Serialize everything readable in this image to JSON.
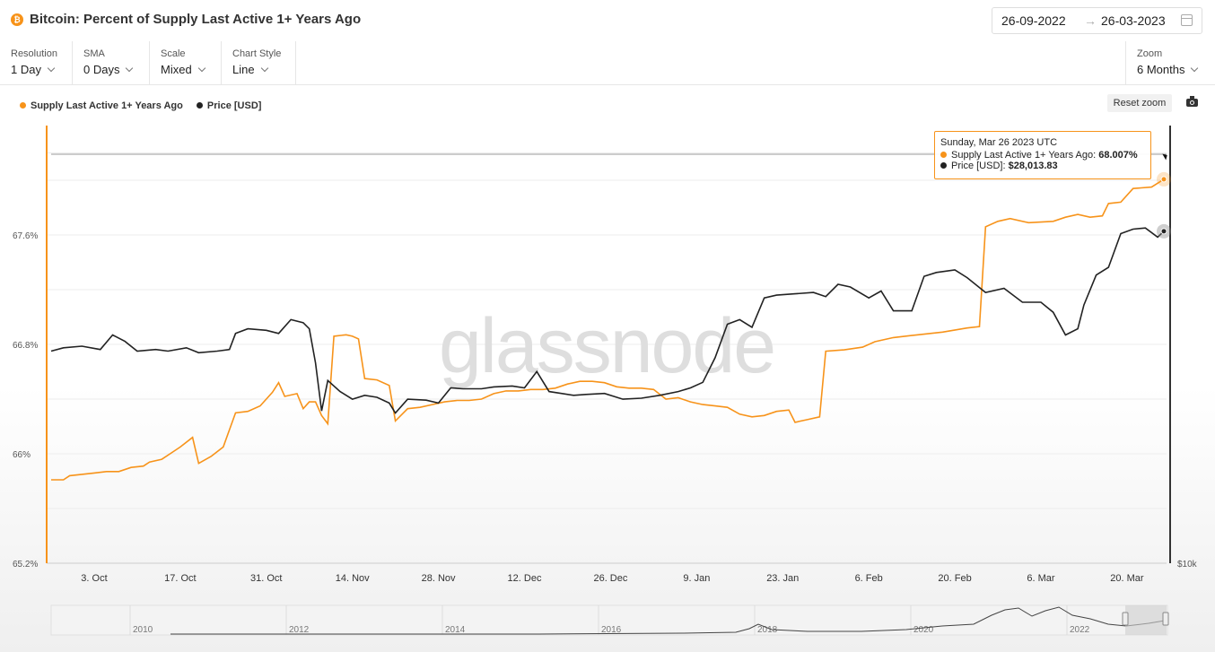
{
  "header": {
    "title": "Bitcoin: Percent of Supply Last Active 1+ Years Ago",
    "btc_symbol": "₿",
    "date_from": "26-09-2022",
    "date_arrow": "→",
    "date_to": "26-03-2023"
  },
  "controls": {
    "resolution": {
      "label": "Resolution",
      "value": "1 Day"
    },
    "sma": {
      "label": "SMA",
      "value": "0 Days"
    },
    "scale": {
      "label": "Scale",
      "value": "Mixed"
    },
    "chart_style": {
      "label": "Chart Style",
      "value": "Line"
    },
    "zoom": {
      "label": "Zoom",
      "value": "6 Months"
    }
  },
  "toolbar": {
    "reset_zoom": "Reset zoom"
  },
  "tooltip": {
    "date": "Sunday, Mar 26 2023 UTC",
    "supply_label": "Supply Last Active 1+ Years Ago:",
    "supply_value": "68.007%",
    "price_label": "Price [USD]:",
    "price_value": "$28,013.83"
  },
  "watermark": "glassnode",
  "colors": {
    "supply": "#f7931a",
    "price": "#222222",
    "accent": "#f7931a"
  },
  "chart_data": {
    "type": "line",
    "x_labels": [
      "3. Oct",
      "17. Oct",
      "31. Oct",
      "14. Nov",
      "28. Nov",
      "12. Dec",
      "26. Dec",
      "9. Jan",
      "23. Jan",
      "6. Feb",
      "20. Feb",
      "6. Mar",
      "20. Mar"
    ],
    "x_start": "2022-09-26",
    "x_end": "2023-03-26",
    "y_left": {
      "ticks": [
        "65.2%",
        "66%",
        "66.8%",
        "67.6%"
      ],
      "min": 65.2,
      "max": 68.4
    },
    "y_right": {
      "ticks": [
        "$10k"
      ]
    },
    "legend": "top-left",
    "grid": true,
    "series": [
      {
        "name": "Supply Last Active 1+ Years Ago",
        "axis": "left",
        "unit": "%",
        "points": [
          [
            "2022-09-26",
            65.81
          ],
          [
            "2022-09-28",
            65.81
          ],
          [
            "2022-09-29",
            65.84
          ],
          [
            "2022-10-01",
            65.85
          ],
          [
            "2022-10-03",
            65.86
          ],
          [
            "2022-10-05",
            65.87
          ],
          [
            "2022-10-07",
            65.87
          ],
          [
            "2022-10-09",
            65.9
          ],
          [
            "2022-10-11",
            65.91
          ],
          [
            "2022-10-12",
            65.94
          ],
          [
            "2022-10-14",
            65.96
          ],
          [
            "2022-10-16",
            66.02
          ],
          [
            "2022-10-17",
            66.05
          ],
          [
            "2022-10-19",
            66.12
          ],
          [
            "2022-10-20",
            65.93
          ],
          [
            "2022-10-22",
            65.98
          ],
          [
            "2022-10-24",
            66.05
          ],
          [
            "2022-10-26",
            66.3
          ],
          [
            "2022-10-28",
            66.31
          ],
          [
            "2022-10-30",
            66.35
          ],
          [
            "2022-11-01",
            66.45
          ],
          [
            "2022-11-02",
            66.52
          ],
          [
            "2022-11-03",
            66.42
          ],
          [
            "2022-11-05",
            66.44
          ],
          [
            "2022-11-06",
            66.33
          ],
          [
            "2022-11-07",
            66.38
          ],
          [
            "2022-11-08",
            66.38
          ],
          [
            "2022-11-09",
            66.28
          ],
          [
            "2022-11-10",
            66.22
          ],
          [
            "2022-11-11",
            66.86
          ],
          [
            "2022-11-13",
            66.87
          ],
          [
            "2022-11-14",
            66.86
          ],
          [
            "2022-11-15",
            66.84
          ],
          [
            "2022-11-16",
            66.55
          ],
          [
            "2022-11-18",
            66.54
          ],
          [
            "2022-11-20",
            66.5
          ],
          [
            "2022-11-21",
            66.24
          ],
          [
            "2022-11-23",
            66.33
          ],
          [
            "2022-11-25",
            66.34
          ],
          [
            "2022-11-27",
            66.36
          ],
          [
            "2022-11-29",
            66.38
          ],
          [
            "2022-12-01",
            66.39
          ],
          [
            "2022-12-03",
            66.39
          ],
          [
            "2022-12-05",
            66.4
          ],
          [
            "2022-12-07",
            66.44
          ],
          [
            "2022-12-09",
            66.46
          ],
          [
            "2022-12-11",
            66.46
          ],
          [
            "2022-12-13",
            66.47
          ],
          [
            "2022-12-15",
            66.47
          ],
          [
            "2022-12-17",
            66.48
          ],
          [
            "2022-12-19",
            66.51
          ],
          [
            "2022-12-21",
            66.53
          ],
          [
            "2022-12-23",
            66.53
          ],
          [
            "2022-12-25",
            66.52
          ],
          [
            "2022-12-27",
            66.49
          ],
          [
            "2022-12-29",
            66.48
          ],
          [
            "2022-12-31",
            66.48
          ],
          [
            "2023-01-02",
            66.47
          ],
          [
            "2023-01-04",
            66.4
          ],
          [
            "2023-01-06",
            66.41
          ],
          [
            "2023-01-08",
            66.38
          ],
          [
            "2023-01-10",
            66.36
          ],
          [
            "2023-01-12",
            66.35
          ],
          [
            "2023-01-14",
            66.34
          ],
          [
            "2023-01-16",
            66.29
          ],
          [
            "2023-01-18",
            66.27
          ],
          [
            "2023-01-20",
            66.28
          ],
          [
            "2023-01-22",
            66.31
          ],
          [
            "2023-01-24",
            66.32
          ],
          [
            "2023-01-25",
            66.23
          ],
          [
            "2023-01-27",
            66.25
          ],
          [
            "2023-01-29",
            66.27
          ],
          [
            "2023-01-30",
            66.75
          ],
          [
            "2023-02-02",
            66.76
          ],
          [
            "2023-02-05",
            66.78
          ],
          [
            "2023-02-07",
            66.82
          ],
          [
            "2023-02-10",
            66.85
          ],
          [
            "2023-02-14",
            66.87
          ],
          [
            "2023-02-18",
            66.89
          ],
          [
            "2023-02-22",
            66.92
          ],
          [
            "2023-02-24",
            66.93
          ],
          [
            "2023-02-25",
            67.66
          ],
          [
            "2023-02-27",
            67.7
          ],
          [
            "2023-03-01",
            67.72
          ],
          [
            "2023-03-04",
            67.69
          ],
          [
            "2023-03-08",
            67.7
          ],
          [
            "2023-03-10",
            67.73
          ],
          [
            "2023-03-12",
            67.75
          ],
          [
            "2023-03-14",
            67.73
          ],
          [
            "2023-03-16",
            67.74
          ],
          [
            "2023-03-17",
            67.83
          ],
          [
            "2023-03-19",
            67.84
          ],
          [
            "2023-03-21",
            67.94
          ],
          [
            "2023-03-24",
            67.95
          ],
          [
            "2023-03-26",
            68.007
          ]
        ]
      },
      {
        "name": "Price [USD]",
        "axis": "right",
        "unit": "USD",
        "points": [
          [
            "2022-09-26",
            19200
          ],
          [
            "2022-09-28",
            19400
          ],
          [
            "2022-10-01",
            19500
          ],
          [
            "2022-10-04",
            19300
          ],
          [
            "2022-10-06",
            20200
          ],
          [
            "2022-10-08",
            19800
          ],
          [
            "2022-10-10",
            19200
          ],
          [
            "2022-10-13",
            19300
          ],
          [
            "2022-10-15",
            19200
          ],
          [
            "2022-10-18",
            19400
          ],
          [
            "2022-10-20",
            19100
          ],
          [
            "2022-10-23",
            19200
          ],
          [
            "2022-10-25",
            19300
          ],
          [
            "2022-10-26",
            20300
          ],
          [
            "2022-10-28",
            20600
          ],
          [
            "2022-10-31",
            20500
          ],
          [
            "2022-11-02",
            20300
          ],
          [
            "2022-11-04",
            21200
          ],
          [
            "2022-11-06",
            21000
          ],
          [
            "2022-11-07",
            20600
          ],
          [
            "2022-11-08",
            18500
          ],
          [
            "2022-11-09",
            15900
          ],
          [
            "2022-11-10",
            17500
          ],
          [
            "2022-11-12",
            16900
          ],
          [
            "2022-11-14",
            16500
          ],
          [
            "2022-11-16",
            16700
          ],
          [
            "2022-11-18",
            16600
          ],
          [
            "2022-11-20",
            16300
          ],
          [
            "2022-11-21",
            15800
          ],
          [
            "2022-11-23",
            16500
          ],
          [
            "2022-11-26",
            16450
          ],
          [
            "2022-11-28",
            16300
          ],
          [
            "2022-11-30",
            17100
          ],
          [
            "2022-12-02",
            17050
          ],
          [
            "2022-12-05",
            17050
          ],
          [
            "2022-12-07",
            17150
          ],
          [
            "2022-12-10",
            17200
          ],
          [
            "2022-12-12",
            17100
          ],
          [
            "2022-12-14",
            18000
          ],
          [
            "2022-12-16",
            16900
          ],
          [
            "2022-12-18",
            16800
          ],
          [
            "2022-12-20",
            16700
          ],
          [
            "2022-12-22",
            16750
          ],
          [
            "2022-12-25",
            16800
          ],
          [
            "2022-12-28",
            16500
          ],
          [
            "2022-12-31",
            16550
          ],
          [
            "2023-01-03",
            16700
          ],
          [
            "2023-01-06",
            16900
          ],
          [
            "2023-01-08",
            17100
          ],
          [
            "2023-01-10",
            17400
          ],
          [
            "2023-01-12",
            18800
          ],
          [
            "2023-01-14",
            20900
          ],
          [
            "2023-01-16",
            21200
          ],
          [
            "2023-01-18",
            20700
          ],
          [
            "2023-01-20",
            22700
          ],
          [
            "2023-01-22",
            22900
          ],
          [
            "2023-01-25",
            23000
          ],
          [
            "2023-01-28",
            23100
          ],
          [
            "2023-01-30",
            22800
          ],
          [
            "2023-02-01",
            23700
          ],
          [
            "2023-02-03",
            23500
          ],
          [
            "2023-02-06",
            22700
          ],
          [
            "2023-02-08",
            23200
          ],
          [
            "2023-02-10",
            21800
          ],
          [
            "2023-02-13",
            21800
          ],
          [
            "2023-02-15",
            24300
          ],
          [
            "2023-02-17",
            24600
          ],
          [
            "2023-02-20",
            24800
          ],
          [
            "2023-02-22",
            24200
          ],
          [
            "2023-02-25",
            23100
          ],
          [
            "2023-02-28",
            23400
          ],
          [
            "2023-03-03",
            22400
          ],
          [
            "2023-03-06",
            22400
          ],
          [
            "2023-03-08",
            21700
          ],
          [
            "2023-03-10",
            20200
          ],
          [
            "2023-03-12",
            20600
          ],
          [
            "2023-03-13",
            22200
          ],
          [
            "2023-03-15",
            24400
          ],
          [
            "2023-03-17",
            25000
          ],
          [
            "2023-03-19",
            27800
          ],
          [
            "2023-03-21",
            28200
          ],
          [
            "2023-03-23",
            28300
          ],
          [
            "2023-03-25",
            27500
          ],
          [
            "2023-03-26",
            28013.83
          ]
        ]
      }
    ]
  },
  "navigator": {
    "years": [
      "2010",
      "2012",
      "2014",
      "2016",
      "2018",
      "2020",
      "2022"
    ]
  }
}
